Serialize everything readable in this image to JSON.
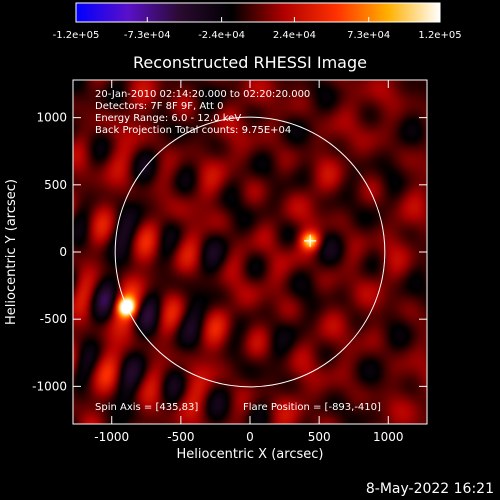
{
  "chart_data": {
    "type": "heatmap",
    "title": "Reconstructed RHESSI Image",
    "xlabel": "Heliocentric X (arcsec)",
    "ylabel": "Heliocentric Y (arcsec)",
    "xlim": [
      -1280,
      1280
    ],
    "ylim": [
      -1280,
      1280
    ],
    "x_ticks": [
      -1000,
      -500,
      0,
      500,
      1000
    ],
    "x_tick_labels": [
      "-1000",
      "-500",
      "0",
      "500",
      "1000"
    ],
    "y_ticks": [
      -1000,
      -500,
      0,
      500,
      1000
    ],
    "y_tick_labels": [
      "-1000",
      "-500",
      "0",
      "500",
      "1000"
    ],
    "colorbar": {
      "range": [
        -120000,
        120000
      ],
      "tick_values": [
        -120000,
        -73000,
        -24000,
        24000,
        73000,
        120000
      ],
      "tick_labels": [
        "-1.2e+05",
        "-7.3e+04",
        "-2.4e+04",
        "2.4e+04",
        "7.3e+04",
        "1.2e+05"
      ],
      "colormap": [
        "#0000ff",
        "#5a10c8",
        "#2a0a30",
        "#000000",
        "#b00000",
        "#ff3000",
        "#ffb000",
        "#ffffff"
      ]
    },
    "annotations": [
      "20-Jan-2010 02:14:20.000 to 02:20:20.000",
      "Detectors: 7F 8F 9F, Att 0",
      "Energy Range: 6.0 - 12.0 keV",
      "Back Projection    Total counts: 9.75E+04"
    ],
    "footer_left": "Spin Axis = [435,83]",
    "footer_right": "Flare Position = [-893,-410]",
    "solar_disk": {
      "center": [
        0,
        0
      ],
      "radius_arcsec": 975
    },
    "sources": [
      {
        "x": -893,
        "y": -410,
        "peak": 120000
      },
      {
        "x": 435,
        "y": 83,
        "peak": 90000
      }
    ],
    "marker": {
      "x": 435,
      "y": 83,
      "symbol": "+"
    },
    "fringe_direction_arcsec": [
      1,
      -0.28
    ],
    "fringe_period_arcsec": 330
  },
  "timestamp": "8-May-2022 16:21",
  "colors": {
    "background": "#000000",
    "foreground": "#ffffff"
  }
}
